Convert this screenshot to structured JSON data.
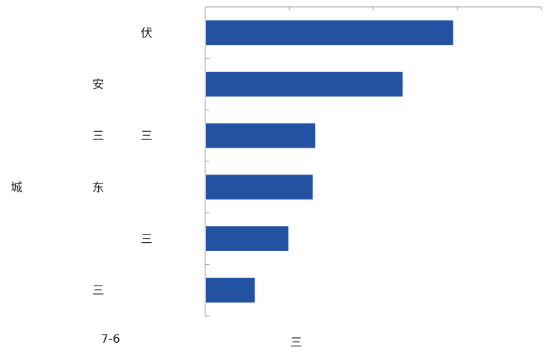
{
  "chart_data": {
    "type": "bar",
    "orientation": "horizontal",
    "categories": [
      {
        "left": "",
        "middle": "",
        "right": "伏"
      },
      {
        "left": "",
        "middle": "安",
        "right": ""
      },
      {
        "left": "",
        "middle": "三",
        "right": "三"
      },
      {
        "left": "城",
        "middle": "东",
        "right": ""
      },
      {
        "left": "",
        "middle": "",
        "right": "三"
      },
      {
        "left": "",
        "middle": "三",
        "right": ""
      }
    ],
    "values": [
      2.95,
      2.35,
      1.31,
      1.28,
      0.99,
      0.59
    ],
    "xlim": [
      0,
      4
    ],
    "x_ticks": [
      0,
      1,
      2,
      3,
      4
    ],
    "bar_color": "#2352a3",
    "axis_color": "#9a9a9a",
    "grid": false,
    "legend": "none"
  },
  "footer": {
    "left": "7-6",
    "center": "三"
  }
}
